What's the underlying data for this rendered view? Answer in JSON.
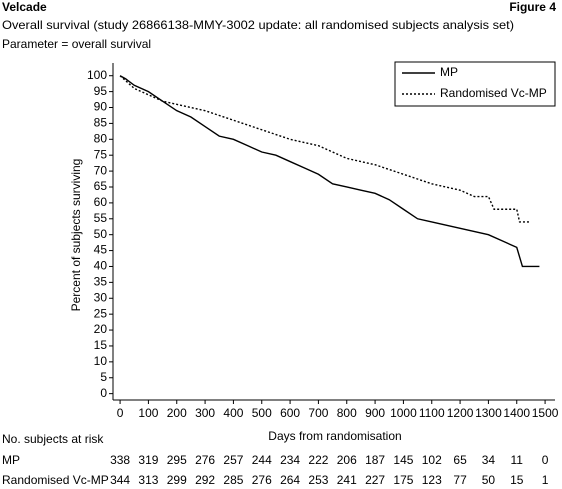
{
  "chart_data": {
    "type": "line",
    "header": "Velcade",
    "figure_label": "Figure 4",
    "title": "Overall survival (study 26866138-MMY-3002 update: all randomised subjects analysis set)",
    "subtitle": "Parameter = overall survival",
    "x_label": "Days from randomisation",
    "y_label": "Percent of subjects surviving",
    "xlim": [
      -25,
      1535
    ],
    "ylim": [
      -2,
      104
    ],
    "xticks": [
      0,
      100,
      200,
      300,
      400,
      500,
      600,
      700,
      800,
      900,
      1000,
      1100,
      1200,
      1300,
      1400,
      1500
    ],
    "yticks": [
      0,
      5,
      10,
      15,
      20,
      25,
      30,
      35,
      40,
      45,
      50,
      55,
      60,
      65,
      70,
      75,
      80,
      85,
      90,
      95,
      100
    ],
    "legend": "top-right",
    "series": [
      {
        "name": "MP",
        "color": "#000000",
        "line_style": "solid",
        "x": [
          0,
          20,
          50,
          100,
          150,
          200,
          250,
          300,
          350,
          400,
          450,
          500,
          550,
          600,
          650,
          700,
          750,
          800,
          850,
          900,
          950,
          1000,
          1050,
          1100,
          1200,
          1300,
          1350,
          1400,
          1420,
          1480
        ],
        "values": [
          100,
          99,
          97,
          95,
          92,
          89,
          87,
          84,
          81,
          80,
          78,
          76,
          75,
          73,
          71,
          69,
          66,
          65,
          64,
          63,
          61,
          58,
          55,
          54,
          52,
          50,
          48,
          46,
          40,
          40
        ]
      },
      {
        "name": "Randomised Vc-MP",
        "color": "#000000",
        "line_style": "dotted",
        "x": [
          0,
          50,
          100,
          150,
          200,
          300,
          400,
          500,
          600,
          700,
          800,
          900,
          1000,
          1100,
          1200,
          1250,
          1300,
          1320,
          1400,
          1410,
          1450
        ],
        "values": [
          100,
          96,
          94,
          92,
          91,
          89,
          86,
          83,
          80,
          78,
          74,
          72,
          69,
          66,
          64,
          62,
          62,
          58,
          58,
          54,
          54
        ]
      }
    ],
    "risk_table": {
      "title": "No. subjects at risk",
      "rows": [
        {
          "name": "MP",
          "values": [
            338,
            319,
            295,
            276,
            257,
            244,
            234,
            222,
            206,
            187,
            145,
            102,
            65,
            34,
            11,
            0
          ]
        },
        {
          "name": "Randomised Vc-MP",
          "values": [
            344,
            313,
            299,
            292,
            285,
            276,
            264,
            253,
            241,
            227,
            175,
            123,
            77,
            50,
            15,
            1
          ]
        }
      ]
    }
  }
}
